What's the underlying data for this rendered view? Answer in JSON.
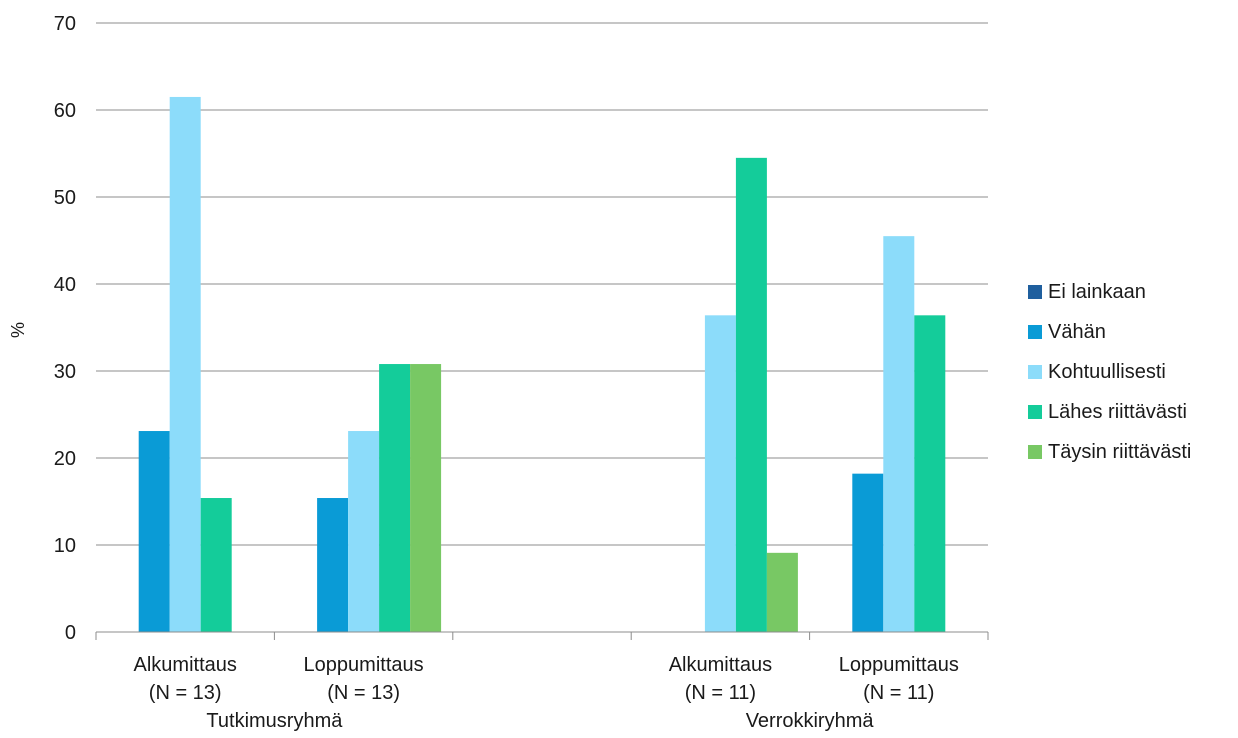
{
  "chart_data": {
    "type": "bar",
    "ylabel": "%",
    "xlabel": "",
    "title": "",
    "ylim": [
      0,
      70
    ],
    "yticks": [
      0,
      10,
      20,
      30,
      40,
      50,
      60,
      70
    ],
    "grid": true,
    "legend_position": "right",
    "groups": [
      {
        "label": "Tutkimusryhmä",
        "categories": [
          "Alkumittaus (N = 13)",
          "Loppumittaus (N = 13)"
        ]
      },
      {
        "label": "",
        "categories": [
          ""
        ]
      },
      {
        "label": "Verrokkiryhmä",
        "categories": [
          "Alkumittaus (N = 11)",
          "Loppumittaus (N = 11)"
        ]
      }
    ],
    "categories": [
      {
        "line1": "Alkumittaus",
        "line2": "(N = 13)"
      },
      {
        "line1": "Loppumittaus",
        "line2": "(N = 13)"
      },
      {
        "line1": "",
        "line2": ""
      },
      {
        "line1": "Alkumittaus",
        "line2": "(N = 11)"
      },
      {
        "line1": "Loppumittaus",
        "line2": "(N = 11)"
      }
    ],
    "series": [
      {
        "name": "Ei lainkaan",
        "color": "#1f5f9e",
        "values": [
          0,
          0,
          null,
          0,
          0
        ]
      },
      {
        "name": "Vähän",
        "color": "#0a9bd6",
        "values": [
          23.1,
          15.4,
          null,
          0,
          18.2
        ]
      },
      {
        "name": "Kohtuullisesti",
        "color": "#8cdcfa",
        "values": [
          61.5,
          23.1,
          null,
          36.4,
          45.5
        ]
      },
      {
        "name": "Lähes riittävästi",
        "color": "#14cc9a",
        "values": [
          15.4,
          30.8,
          null,
          54.5,
          36.4
        ]
      },
      {
        "name": "Täysin riittävästi",
        "color": "#78c864",
        "values": [
          0,
          30.8,
          null,
          9.1,
          0
        ]
      }
    ]
  }
}
